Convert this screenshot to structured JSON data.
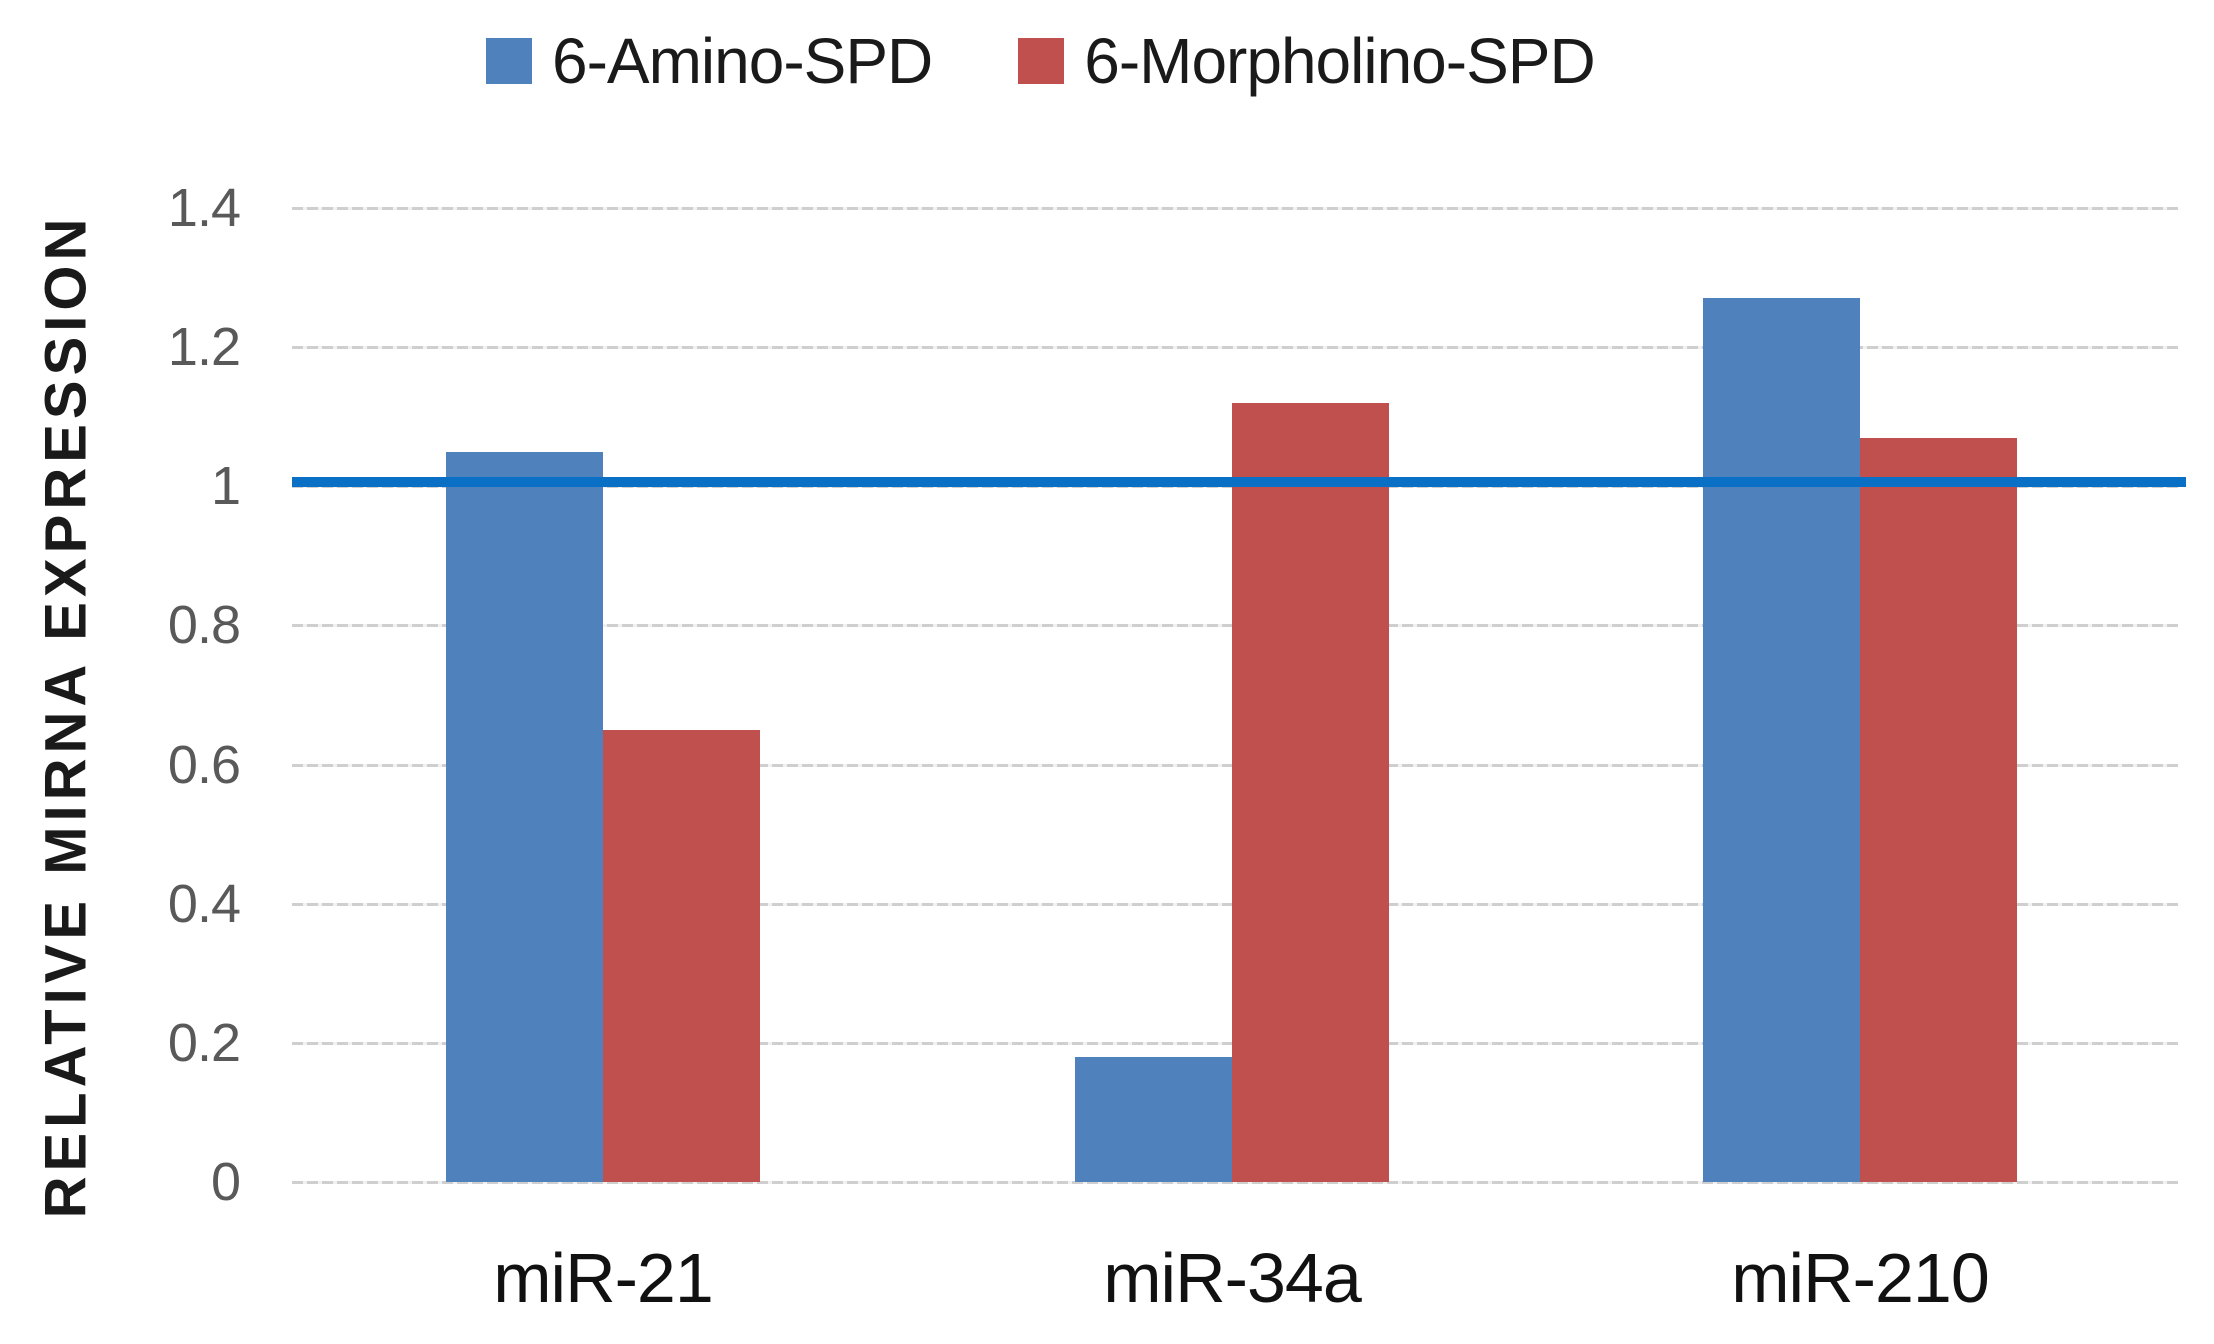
{
  "chart_data": {
    "type": "bar",
    "title": "",
    "xlabel": "",
    "ylabel": "RELATIVE MIRNA EXPRESSION",
    "categories": [
      "miR-21",
      "miR-34a",
      "miR-210"
    ],
    "series": [
      {
        "name": "6-Amino-SPD",
        "color": "#4f81bd",
        "values": [
          1.05,
          0.18,
          1.27
        ]
      },
      {
        "name": "6-Morpholino-SPD",
        "color": "#c0504d",
        "values": [
          0.65,
          1.12,
          1.07
        ]
      }
    ],
    "reference_line": {
      "value": 1.0,
      "color": "#0a70c6"
    },
    "ylim": [
      0,
      1.4
    ],
    "yticks": [
      0,
      0.2,
      0.4,
      0.6,
      0.8,
      1,
      1.2,
      1.4
    ],
    "ytick_labels": [
      "0",
      "0.2",
      "0.4",
      "0.6",
      "0.8",
      "1",
      "1.2",
      "1.4"
    ],
    "grid": true,
    "gridline_color": "#d2d2d2",
    "tick_label_color": "#595959",
    "legend_position": "top"
  }
}
